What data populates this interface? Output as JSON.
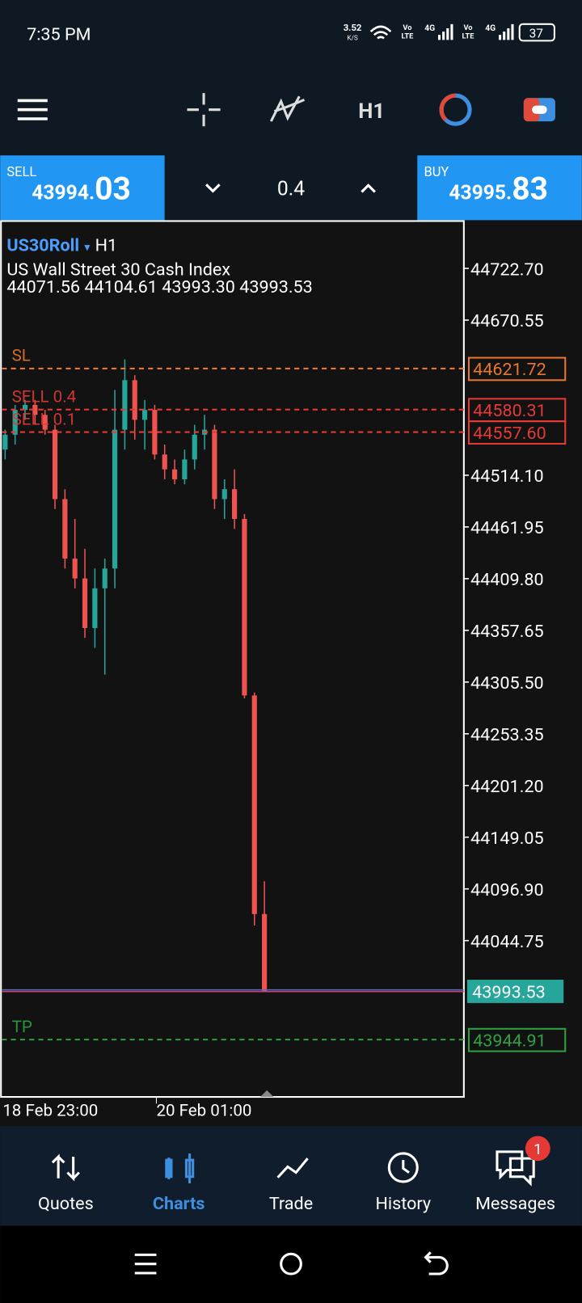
{
  "status": {
    "time": "7:35 PM",
    "net_speed": "3.52",
    "net_unit": "K/S",
    "signal_labels": [
      "Vo",
      "LTE",
      "4G",
      "Vo",
      "LTE",
      "4G"
    ],
    "battery": "37"
  },
  "toolbar": {
    "timeframe": "H1"
  },
  "trade": {
    "sell": {
      "label": "SELL",
      "price_small": "43994.",
      "price_big": "03"
    },
    "lot": "0.4",
    "buy": {
      "label": "BUY",
      "price_small": "43995.",
      "price_big": "83"
    }
  },
  "chart": {
    "symbol": "US30Roll",
    "timeframe": "H1",
    "description": "US Wall Street 30 Cash Index",
    "ohlc": "44071.56 44104.61 43993.30 43993.53",
    "ylim": [
      43887.1,
      44771.3
    ],
    "yticks": [
      {
        "value": 44722.7,
        "label": "44722.70"
      },
      {
        "value": 44670.55,
        "label": "44670.55"
      },
      {
        "value": 44514.1,
        "label": "44514.10"
      },
      {
        "value": 44461.95,
        "label": "44461.95"
      },
      {
        "value": 44409.8,
        "label": "44409.80"
      },
      {
        "value": 44357.65,
        "label": "44357.65"
      },
      {
        "value": 44305.5,
        "label": "44305.50"
      },
      {
        "value": 44253.35,
        "label": "44253.35"
      },
      {
        "value": 44201.2,
        "label": "44201.20"
      },
      {
        "value": 44149.05,
        "label": "44149.05"
      },
      {
        "value": 44096.9,
        "label": "44096.90"
      },
      {
        "value": 44044.75,
        "label": "44044.75"
      }
    ],
    "levels": [
      {
        "name": "SL",
        "value": 44621.72,
        "color": "#e8762d"
      },
      {
        "name": "SELL 0.4",
        "value": 44580.31,
        "color": "#e53935"
      },
      {
        "name": "SELL 0.1",
        "value": {
          "value": 44557.6,
          "label": "44557.60"
        },
        "color": "#e53935"
      },
      {
        "name": "TP",
        "value": 43944.91,
        "color": "#2ea043"
      }
    ],
    "current_price": 43993.53,
    "up_color": "#26a69a",
    "down_color": "#ef5350",
    "candles": [
      [
        44540,
        44560,
        44530,
        44555
      ],
      [
        44555,
        44585,
        44545,
        44580
      ],
      [
        44580,
        44590,
        44570,
        44585
      ],
      [
        44585,
        44590,
        44565,
        44575
      ],
      [
        44575,
        44580,
        44555,
        44560
      ],
      [
        44560,
        44565,
        44480,
        44490
      ],
      [
        44490,
        44500,
        44420,
        44430
      ],
      [
        44430,
        44470,
        44400,
        44410
      ],
      [
        44410,
        44440,
        44350,
        44360
      ],
      [
        44360,
        44420,
        44340,
        44400
      ],
      [
        44400,
        44430,
        44313,
        44420
      ],
      [
        44420,
        44600,
        44400,
        44560
      ],
      [
        44560,
        44631,
        44540,
        44610
      ],
      [
        44610,
        44615,
        44550,
        44570
      ],
      [
        44570,
        44590,
        44540,
        44580
      ],
      [
        44580,
        44585,
        44530,
        44535
      ],
      [
        44535,
        44545,
        44510,
        44520
      ],
      [
        44520,
        44530,
        44505,
        44510
      ],
      [
        44510,
        44540,
        44505,
        44530
      ],
      [
        44530,
        44565,
        44520,
        44555
      ],
      [
        44555,
        44575,
        44540,
        44560
      ],
      [
        44560,
        44565,
        44480,
        44490
      ],
      [
        44490,
        44510,
        44470,
        44500
      ],
      [
        44500,
        44520,
        44460,
        44470
      ],
      [
        44470,
        44475,
        44289,
        44292
      ],
      [
        44292,
        44295,
        44060,
        44071.56
      ],
      [
        44071.56,
        44104.61,
        43993.3,
        43993.53
      ]
    ],
    "time_labels": [
      "18 Feb 23:00",
      "20 Feb 01:00"
    ]
  },
  "nav": {
    "items": [
      "Quotes",
      "Charts",
      "Trade",
      "History",
      "Messages"
    ],
    "badge": "1"
  }
}
